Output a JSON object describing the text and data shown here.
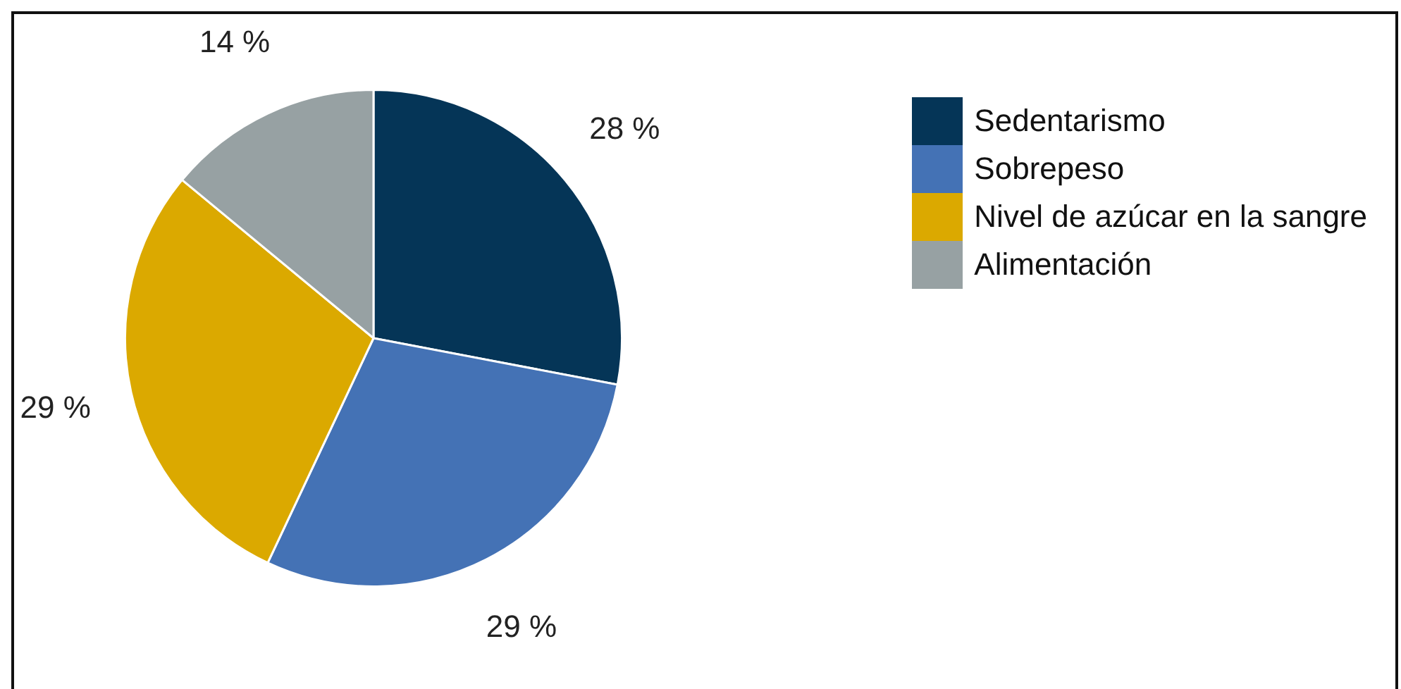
{
  "chart_data": {
    "type": "pie",
    "categories": [
      "Sedentarismo",
      "Sobrepeso",
      "Nivel de azúcar en la sangre",
      "Alimentación"
    ],
    "values": [
      28,
      29,
      29,
      14
    ],
    "colors": [
      "#053557",
      "#4472b5",
      "#dba900",
      "#97a1a3"
    ],
    "value_labels": [
      "28 %",
      "29 %",
      "29 %",
      "14 %"
    ],
    "legend": "top right"
  }
}
